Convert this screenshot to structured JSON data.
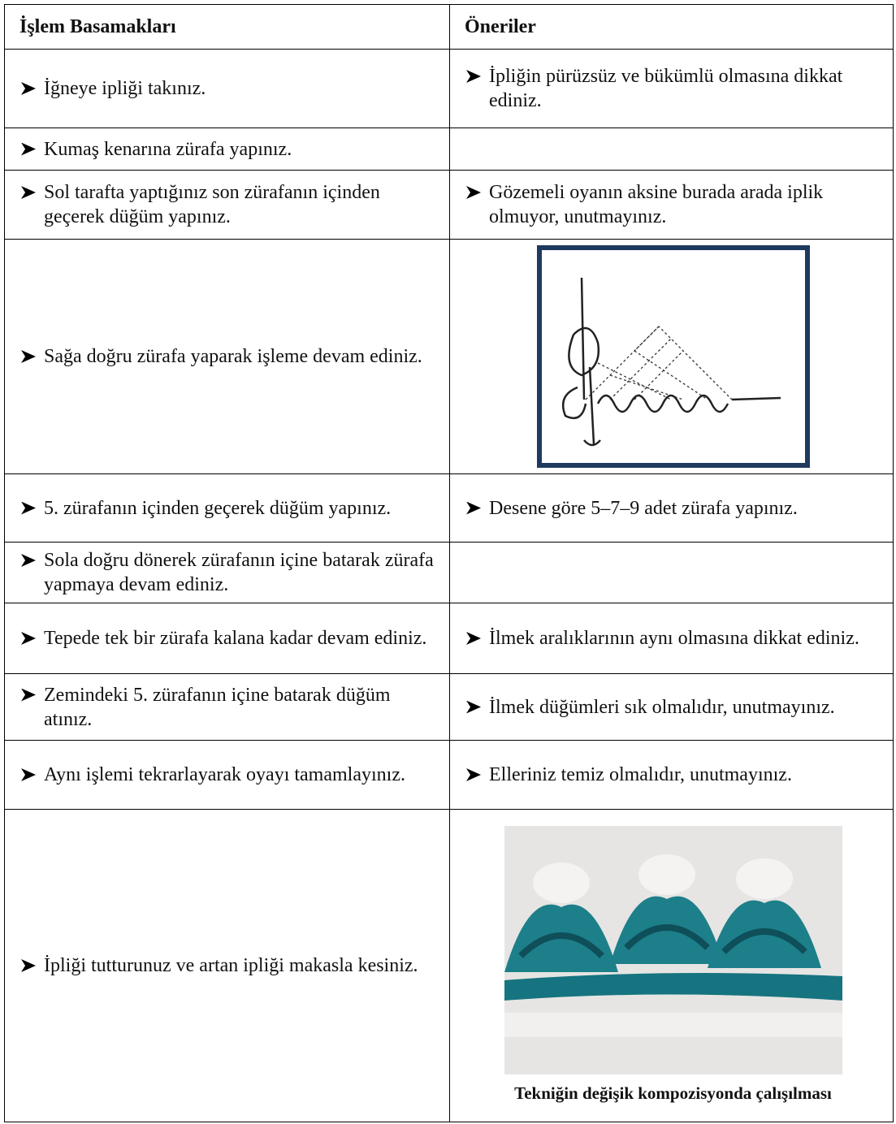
{
  "table": {
    "header": [
      "İşlem Basamakları",
      "Öneriler"
    ],
    "rows": [
      {
        "step": "İğneye ipliği takınız.",
        "suggestion": "İpliğin pürüzsüz ve bükümlü olmasına dikkat ediniz."
      },
      {
        "step": "Kumaş kenarına zürafa yapınız."
      },
      {
        "step": "Sol tarafta yaptığınız son zürafanın içinden geçerek düğüm yapınız.",
        "suggestion": "Gözemeli oyanın aksine burada arada iplik olmuyor, unutmayınız."
      },
      {
        "step": "Sağa doğru zürafa yaparak işleme devam ediniz."
      },
      {
        "step": "5. zürafanın içinden geçerek düğüm yapınız.",
        "suggestion": "Desene göre 5–7–9 adet zürafa yapınız."
      },
      {
        "step": "Sola doğru dönerek zürafanın içine batarak zürafa yapmaya devam ediniz."
      },
      {
        "step": "Tepede tek bir zürafa kalana kadar devam ediniz.",
        "suggestion": "İlmek aralıklarının aynı olmasına dikkat ediniz."
      },
      {
        "step": "Zemindeki 5. zürafanın içine batarak düğüm atınız.",
        "suggestion": "İlmek düğümleri sık olmalıdır, unutmayınız."
      },
      {
        "step": "Aynı işlemi tekrarlayarak oyayı tamamlayınız.",
        "suggestion": "Elleriniz temiz olmalıdır, unutmayınız."
      },
      {
        "step": "İpliği tutturunuz ve artan ipliği makasla kesiniz.",
        "caption": "Tekniğin değişik kompozisyonda çalışılması"
      }
    ]
  }
}
